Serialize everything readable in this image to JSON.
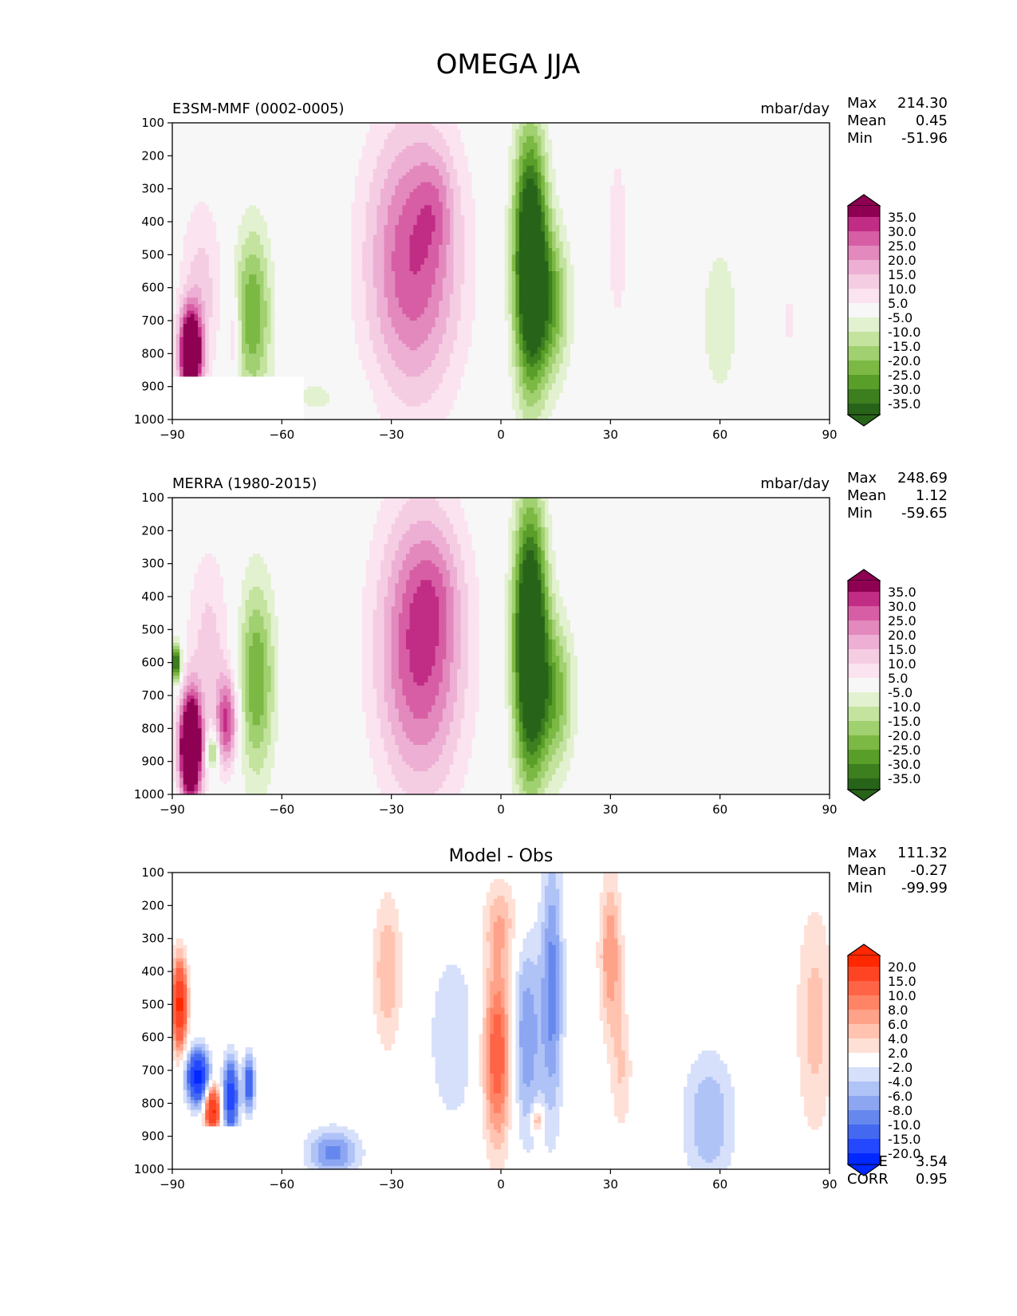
{
  "figure_title": "OMEGA JJA",
  "colors": {
    "pink_green": [
      "#276419",
      "#3d7e1f",
      "#5a9e2a",
      "#7cb844",
      "#a0d070",
      "#c3e39f",
      "#e2f1cf",
      "#f7f7f7",
      "#fbe3f0",
      "#f5cde3",
      "#edafd4",
      "#e389bd",
      "#d75ea4",
      "#c12c85",
      "#8e0152"
    ],
    "blue_red": [
      "#0028ff",
      "#2448ff",
      "#4468f0",
      "#6688ee",
      "#8ca6f2",
      "#b0c3f7",
      "#d6e0fb",
      "#ffffff",
      "#ffe0d6",
      "#ffc3b0",
      "#ffa28a",
      "#ff8466",
      "#ff6446",
      "#ff4424",
      "#ff2800"
    ]
  },
  "chart_data": [
    {
      "type": "heatmap",
      "id": "test",
      "title": "E3SM-MMF (0002-0005)",
      "units": "mbar/day",
      "stats": {
        "max_label": "Max",
        "max": "214.30",
        "mean_label": "Mean",
        "mean": "0.45",
        "min_label": "Min",
        "min": "-51.96"
      },
      "xlim": [
        -90,
        90
      ],
      "ylim": [
        1000,
        100
      ],
      "xticks": [
        "−90",
        "−60",
        "−30",
        "0",
        "30",
        "60",
        "90"
      ],
      "xtick_values": [
        -90,
        -60,
        -30,
        0,
        30,
        60,
        90
      ],
      "yticks": [
        "100",
        "200",
        "300",
        "400",
        "500",
        "600",
        "700",
        "800",
        "900",
        "1000"
      ],
      "ytick_values": [
        100,
        200,
        300,
        400,
        500,
        600,
        700,
        800,
        900,
        1000
      ],
      "colorbar_levels": [
        "35.0",
        "30.0",
        "25.0",
        "20.0",
        "15.0",
        "10.0",
        "5.0",
        "-5.0",
        "-10.0",
        "-15.0",
        "-20.0",
        "-25.0",
        "-30.0",
        "-35.0"
      ],
      "features": [
        {
          "lat": -24,
          "lev": 520,
          "slat": 13,
          "slev": 420,
          "val": 30
        },
        {
          "lat": -18,
          "lev": 350,
          "slat": 5,
          "slev": 150,
          "val": 8
        },
        {
          "lat": 8,
          "lev": 520,
          "slat": 4.5,
          "slev": 380,
          "val": -55
        },
        {
          "lat": 14,
          "lev": 650,
          "slat": 5,
          "slev": 230,
          "val": -22
        },
        {
          "lat": -68,
          "lev": 680,
          "slat": 5,
          "slev": 260,
          "val": -25
        },
        {
          "lat": -85,
          "lev": 800,
          "slat": 3,
          "slev": 130,
          "val": 60
        },
        {
          "lat": -82,
          "lev": 600,
          "slat": 6,
          "slev": 280,
          "val": 12
        },
        {
          "lat": -73,
          "lev": 750,
          "slat": 1.5,
          "slev": 120,
          "val": 15
        },
        {
          "lat": 32,
          "lev": 450,
          "slat": 3,
          "slev": 280,
          "val": 9
        },
        {
          "lat": 60,
          "lev": 700,
          "slat": 7,
          "slev": 330,
          "val": -7
        },
        {
          "lat": 79,
          "lev": 700,
          "slat": 2,
          "slev": 150,
          "val": 6
        },
        {
          "lat": -50,
          "lev": 930,
          "slat": 10,
          "slev": 80,
          "val": -6
        }
      ],
      "mask_below_lat": -54,
      "mask_below_lev": 870
    },
    {
      "type": "heatmap",
      "id": "ref",
      "title": "MERRA (1980-2015)",
      "units": "mbar/day",
      "stats": {
        "max_label": "Max",
        "max": "248.69",
        "mean_label": "Mean",
        "mean": "1.12",
        "min_label": "Min",
        "min": "-59.65"
      },
      "xlim": [
        -90,
        90
      ],
      "ylim": [
        1000,
        100
      ],
      "xticks": [
        "−90",
        "−60",
        "−30",
        "0",
        "30",
        "60",
        "90"
      ],
      "xtick_values": [
        -90,
        -60,
        -30,
        0,
        30,
        60,
        90
      ],
      "yticks": [
        "100",
        "200",
        "300",
        "400",
        "500",
        "600",
        "700",
        "800",
        "900",
        "1000"
      ],
      "ytick_values": [
        100,
        200,
        300,
        400,
        500,
        600,
        700,
        800,
        900,
        1000
      ],
      "colorbar_levels": [
        "35.0",
        "30.0",
        "25.0",
        "20.0",
        "15.0",
        "10.0",
        "5.0",
        "-5.0",
        "-10.0",
        "-15.0",
        "-20.0",
        "-25.0",
        "-30.0",
        "-35.0"
      ],
      "features": [
        {
          "lat": -22,
          "lev": 560,
          "slat": 12,
          "slev": 430,
          "val": 32
        },
        {
          "lat": -18,
          "lev": 380,
          "slat": 7,
          "slev": 170,
          "val": 6
        },
        {
          "lat": 8,
          "lev": 540,
          "slat": 4.5,
          "slev": 400,
          "val": -58
        },
        {
          "lat": 15,
          "lev": 700,
          "slat": 5,
          "slev": 230,
          "val": -22
        },
        {
          "lat": -67,
          "lev": 650,
          "slat": 5,
          "slev": 300,
          "val": -25
        },
        {
          "lat": -85,
          "lev": 860,
          "slat": 3,
          "slev": 160,
          "val": 70
        },
        {
          "lat": -80,
          "lev": 550,
          "slat": 6,
          "slev": 300,
          "val": 12
        },
        {
          "lat": -75,
          "lev": 780,
          "slat": 3,
          "slev": 140,
          "val": 30
        },
        {
          "lat": -79,
          "lev": 870,
          "slat": 1.5,
          "slev": 60,
          "val": -25
        },
        {
          "lat": 35,
          "lev": 650,
          "slat": 3,
          "slev": 200,
          "val": 4
        },
        {
          "lat": -89,
          "lev": 600,
          "slat": 1.5,
          "slev": 60,
          "val": -40
        }
      ],
      "mask_below_lat": -999,
      "mask_below_lev": 1001
    },
    {
      "type": "heatmap",
      "id": "diff",
      "title": "Model - Obs",
      "units": "",
      "stats": {
        "max_label": "Max",
        "max": "111.32",
        "mean_label": "Mean",
        "mean": "-0.27",
        "min_label": "Min",
        "min": "-99.99"
      },
      "extra_stats": {
        "rmse_label": "RMSE",
        "rmse": "3.54",
        "corr_label": "CORR",
        "corr": "0.95"
      },
      "xlim": [
        -90,
        90
      ],
      "ylim": [
        1000,
        100
      ],
      "xticks": [
        "−90",
        "−60",
        "−30",
        "0",
        "30",
        "60",
        "90"
      ],
      "xtick_values": [
        -90,
        -60,
        -30,
        0,
        30,
        60,
        90
      ],
      "yticks": [
        "100",
        "200",
        "300",
        "400",
        "500",
        "600",
        "700",
        "800",
        "900",
        "1000"
      ],
      "ytick_values": [
        100,
        200,
        300,
        400,
        500,
        600,
        700,
        800,
        900,
        1000
      ],
      "colorbar_levels": [
        "20.0",
        "15.0",
        "10.0",
        "8.0",
        "6.0",
        "4.0",
        "2.0",
        "-2.0",
        "-4.0",
        "-6.0",
        "-8.0",
        "-10.0",
        "-15.0",
        "-20.0"
      ],
      "features": [
        {
          "lat": -31,
          "lev": 400,
          "slat": 4,
          "slev": 230,
          "val": 6
        },
        {
          "lat": -1,
          "lev": 650,
          "slat": 4,
          "slev": 280,
          "val": 13
        },
        {
          "lat": 0,
          "lev": 250,
          "slat": 5,
          "slev": 130,
          "val": 5
        },
        {
          "lat": 7,
          "lev": 600,
          "slat": 4,
          "slev": 300,
          "val": -8
        },
        {
          "lat": 14,
          "lev": 450,
          "slat": 3,
          "slev": 400,
          "val": -9
        },
        {
          "lat": 30,
          "lev": 350,
          "slat": 3,
          "slev": 230,
          "val": 8
        },
        {
          "lat": 33,
          "lev": 700,
          "slat": 3,
          "slev": 200,
          "val": 4
        },
        {
          "lat": 10,
          "lev": 850,
          "slat": 1.5,
          "slev": 40,
          "val": 8
        },
        {
          "lat": -13,
          "lev": 600,
          "slat": 9,
          "slev": 350,
          "val": -3
        },
        {
          "lat": -46,
          "lev": 950,
          "slat": 7,
          "slev": 70,
          "val": -9
        },
        {
          "lat": 57,
          "lev": 850,
          "slat": 7,
          "slev": 200,
          "val": -6
        },
        {
          "lat": 86,
          "lev": 550,
          "slat": 5,
          "slev": 350,
          "val": 5
        },
        {
          "lat": -88,
          "lev": 500,
          "slat": 2,
          "slev": 130,
          "val": 22
        },
        {
          "lat": -83,
          "lev": 720,
          "slat": 3,
          "slev": 80,
          "val": -22
        },
        {
          "lat": -74,
          "lev": 780,
          "slat": 2,
          "slev": 110,
          "val": -18
        },
        {
          "lat": -79,
          "lev": 820,
          "slat": 2,
          "slev": 70,
          "val": 22
        },
        {
          "lat": -69,
          "lev": 740,
          "slat": 1.5,
          "slev": 80,
          "val": -14
        }
      ],
      "mask_below_lat": -54,
      "mask_below_lev": 870
    }
  ]
}
